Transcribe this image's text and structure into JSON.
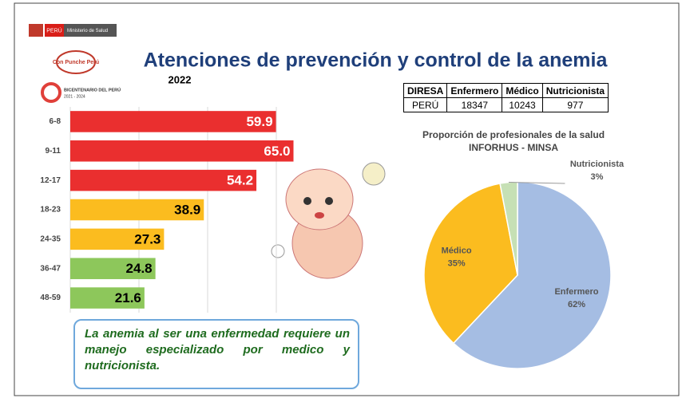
{
  "header": {
    "country": "PERÚ",
    "ministry": "Ministerio de Salud",
    "campaign": "Con Punche Perú",
    "bicentenario": "BICENTENARIO DEL PERÚ",
    "bicentenario_years": "2021 - 2024",
    "title": "Atenciones de prevención y control de la anemia"
  },
  "chart_data": [
    {
      "type": "bar",
      "orientation": "horizontal",
      "title": "2022",
      "categories": [
        "6-8",
        "9-11",
        "12-17",
        "18-23",
        "24-35",
        "36-47",
        "48-59"
      ],
      "values": [
        59.9,
        65.0,
        54.2,
        38.9,
        27.3,
        24.8,
        21.6
      ],
      "value_labels": [
        "59.9",
        "65.0",
        "54.2",
        "38.9",
        "27.3",
        "24.8",
        "21.6"
      ],
      "colors": [
        "#ea2f2f",
        "#ea2f2f",
        "#ea2f2f",
        "#fbbc1f",
        "#fbbc1f",
        "#8dc75b",
        "#8dc75b"
      ],
      "value_label_colors": [
        "#ffffff",
        "#ffffff",
        "#ffffff",
        "#000000",
        "#000000",
        "#000000",
        "#000000"
      ],
      "xlim": [
        0,
        70
      ]
    },
    {
      "type": "pie",
      "title": "Proporción de profesionales de la salud",
      "subtitle": "INFORHUS - MINSA",
      "categories": [
        "Enfermero",
        "Médico",
        "Nutricionista"
      ],
      "values": [
        62,
        35,
        3
      ],
      "value_labels": [
        "62%",
        "35%",
        "3%"
      ],
      "colors": [
        "#a5bde3",
        "#fbbc1f",
        "#c6e0b5"
      ]
    }
  ],
  "table": {
    "header": [
      "DIRESA",
      "Enfermero",
      "Médico",
      "Nutricionista"
    ],
    "rows": [
      [
        "PERÚ",
        18347,
        10243,
        977
      ]
    ]
  },
  "note": "La anemia al ser una enfermedad requiere un manejo especializado por medico y nutricionista."
}
